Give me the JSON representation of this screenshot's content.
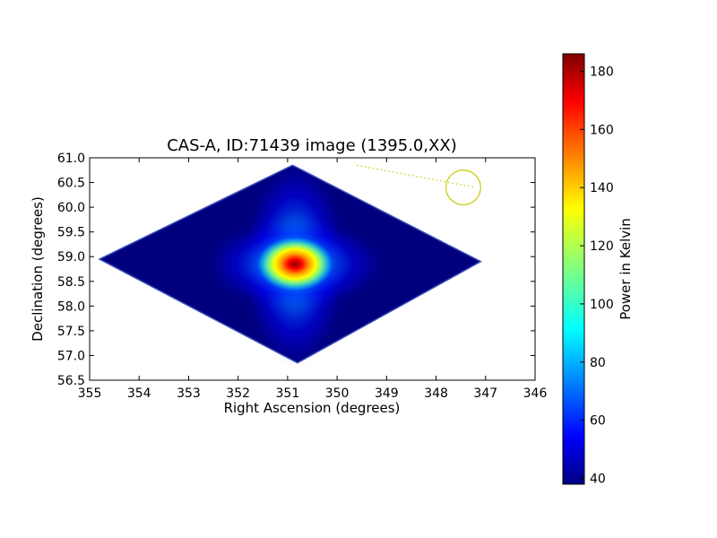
{
  "chart_data": {
    "type": "heatmap",
    "title": "CAS-A, ID:71439 image (1395.0,XX)",
    "xlabel": "Right Ascension (degrees)",
    "ylabel": "Declination (degrees)",
    "xlim": [
      355,
      346
    ],
    "ylim": [
      56.5,
      61.0
    ],
    "x_ticks": [
      "355",
      "354",
      "353",
      "352",
      "351",
      "350",
      "349",
      "348",
      "347",
      "346"
    ],
    "y_ticks": [
      "56.5",
      "57.0",
      "57.5",
      "58.0",
      "58.5",
      "59.0",
      "59.5",
      "60.0",
      "60.5",
      "61.0"
    ],
    "colorbar": {
      "label": "Power in Kelvin",
      "range": [
        38,
        186
      ],
      "ticks": [
        "40",
        "60",
        "80",
        "100",
        "120",
        "140",
        "160",
        "180"
      ],
      "colormap": "jet"
    },
    "footprint_corners_deg": [
      [
        354.8,
        58.95
      ],
      [
        350.9,
        60.85
      ],
      [
        347.1,
        58.9
      ],
      [
        350.8,
        56.85
      ]
    ],
    "peak": {
      "ra": 350.85,
      "dec": 58.85,
      "value": 186
    },
    "background_value": 40,
    "annotation": {
      "circle_center": [
        347.45,
        60.4
      ],
      "circle_radius_deg": 0.35,
      "line_from": [
        349.6,
        60.85
      ],
      "line_to": [
        347.2,
        60.4
      ],
      "color": "#c8c800"
    }
  }
}
